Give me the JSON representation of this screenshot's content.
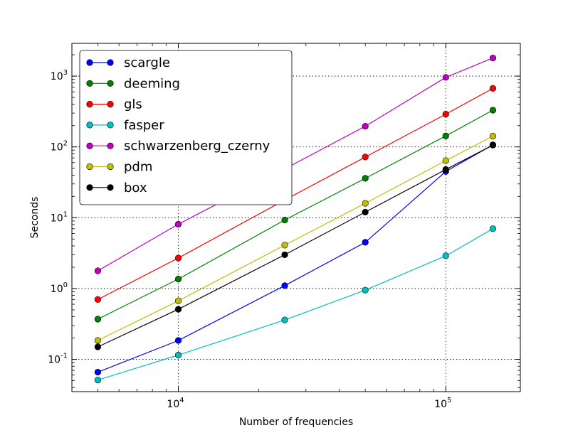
{
  "chart_data": {
    "type": "line",
    "title": "",
    "xlabel": "Number of frequencies",
    "ylabel": "Seconds",
    "xscale": "log",
    "yscale": "log",
    "xlim": [
      4000,
      190000
    ],
    "ylim": [
      0.035,
      2900
    ],
    "grid": true,
    "legend_position": "top-left",
    "x": [
      5000,
      10000,
      25000,
      50000,
      100000,
      150000
    ],
    "x_ticks": [
      {
        "base": "10",
        "exp": "4",
        "value": 10000
      },
      {
        "base": "10",
        "exp": "5",
        "value": 100000
      }
    ],
    "y_ticks": [
      {
        "base": "10",
        "exp": "-1",
        "value": 0.1
      },
      {
        "base": "10",
        "exp": "0",
        "value": 1
      },
      {
        "base": "10",
        "exp": "1",
        "value": 10
      },
      {
        "base": "10",
        "exp": "2",
        "value": 100
      },
      {
        "base": "10",
        "exp": "3",
        "value": 1000
      }
    ],
    "series": [
      {
        "name": "scargle",
        "color": "#0000ff",
        "values": [
          0.066,
          0.185,
          1.1,
          4.5,
          45,
          107
        ]
      },
      {
        "name": "deeming",
        "color": "#008000",
        "values": [
          0.37,
          1.36,
          9.3,
          36,
          143,
          330
        ]
      },
      {
        "name": "gls",
        "color": "#ff0000",
        "values": [
          0.7,
          2.7,
          17.8,
          72,
          290,
          670
        ]
      },
      {
        "name": "fasper",
        "color": "#00bfbf",
        "values": [
          0.051,
          0.115,
          0.36,
          0.95,
          2.9,
          7.0
        ]
      },
      {
        "name": "schwarzenberg_czerny",
        "color": "#bf00bf",
        "values": [
          1.78,
          8.1,
          49,
          196,
          960,
          1800
        ]
      },
      {
        "name": "pdm",
        "color": "#bfbf00",
        "values": [
          0.185,
          0.67,
          4.1,
          16,
          64,
          142
        ]
      },
      {
        "name": "box",
        "color": "#000000",
        "values": [
          0.15,
          0.51,
          3.0,
          12,
          48,
          106
        ]
      }
    ]
  }
}
